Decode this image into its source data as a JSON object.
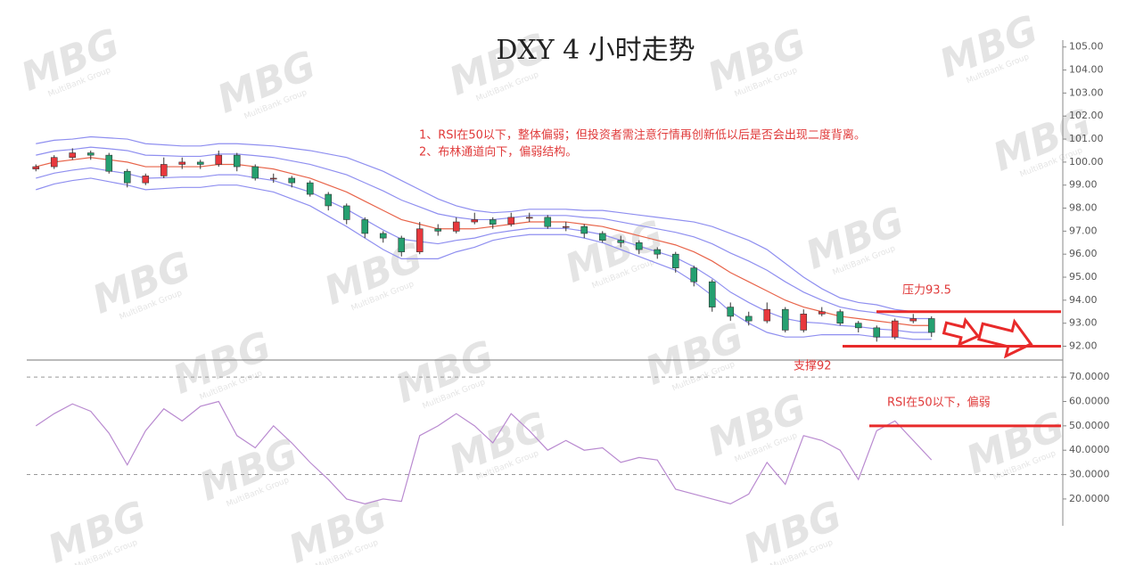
{
  "chart_data": [
    {
      "type": "candlestick",
      "title": "DXY 4 小时走势",
      "annotations": [
        "1、RSI在50以下，整体偏弱；但投资者需注意行情再创新低以后是否会出现二度背离。",
        "2、布林通道向下，偏弱结构。"
      ],
      "watermark": {
        "text": "MBG",
        "subtext": "MultiBank Group"
      },
      "up_color": "#e8383d",
      "down_color": "#25a070",
      "open": [
        99.7,
        99.8,
        100.2,
        100.4,
        100.3,
        99.6,
        99.1,
        99.4,
        99.9,
        100.0,
        99.9,
        100.3,
        99.8,
        99.3,
        99.3,
        99.1,
        98.6,
        98.1,
        97.5,
        96.9,
        96.7,
        96.1,
        97.1,
        97.0,
        97.4,
        97.5,
        97.3,
        97.6,
        97.6,
        97.2,
        97.2,
        96.9,
        96.6,
        96.5,
        96.2,
        96.0,
        95.4,
        94.8,
        93.7,
        93.3,
        93.1,
        93.6,
        92.7,
        93.4,
        93.5,
        93.0,
        92.8,
        92.4,
        93.1,
        93.2
      ],
      "high": [
        99.9,
        100.3,
        100.6,
        100.5,
        100.4,
        99.7,
        99.5,
        100.2,
        100.2,
        100.1,
        100.5,
        100.4,
        99.9,
        99.5,
        99.4,
        99.2,
        98.7,
        98.2,
        97.6,
        97.0,
        96.8,
        97.4,
        97.3,
        97.6,
        97.8,
        97.6,
        97.8,
        97.8,
        97.7,
        97.4,
        97.3,
        97.0,
        96.8,
        96.6,
        96.3,
        96.1,
        95.5,
        94.9,
        93.9,
        93.5,
        93.9,
        93.7,
        93.6,
        93.7,
        93.6,
        93.1,
        92.9,
        93.2,
        93.4,
        93.3
      ],
      "low": [
        99.6,
        99.7,
        100.1,
        100.1,
        99.5,
        98.9,
        99.0,
        99.3,
        99.7,
        99.7,
        99.8,
        99.6,
        99.2,
        99.1,
        98.9,
        98.5,
        97.9,
        97.3,
        96.7,
        96.5,
        95.9,
        96.0,
        96.8,
        96.9,
        97.3,
        97.1,
        97.2,
        97.4,
        97.1,
        97.0,
        96.7,
        96.5,
        96.3,
        96.0,
        95.8,
        95.2,
        94.6,
        93.5,
        93.1,
        92.9,
        93.0,
        92.6,
        92.6,
        93.3,
        92.9,
        92.6,
        92.2,
        92.3,
        93.0,
        92.4
      ],
      "close": [
        99.8,
        100.2,
        100.4,
        100.3,
        99.6,
        99.1,
        99.4,
        99.9,
        100.0,
        99.9,
        100.3,
        99.8,
        99.3,
        99.3,
        99.1,
        98.6,
        98.1,
        97.5,
        96.9,
        96.7,
        96.1,
        97.1,
        97.0,
        97.4,
        97.5,
        97.3,
        97.6,
        97.6,
        97.2,
        97.2,
        96.9,
        96.6,
        96.5,
        96.2,
        96.0,
        95.4,
        94.8,
        93.7,
        93.3,
        93.1,
        93.6,
        92.7,
        93.4,
        93.5,
        93.0,
        92.8,
        92.4,
        93.1,
        93.2,
        92.6
      ],
      "bands": [
        {
          "color": "#8f8ff0",
          "values": [
            100.8,
            100.95,
            101.0,
            101.1,
            101.05,
            101.0,
            100.8,
            100.75,
            100.7,
            100.7,
            100.8,
            100.8,
            100.75,
            100.7,
            100.6,
            100.5,
            100.35,
            100.2,
            99.9,
            99.6,
            99.2,
            98.8,
            98.4,
            98.1,
            97.9,
            97.8,
            97.85,
            97.95,
            97.95,
            97.95,
            97.9,
            97.9,
            97.8,
            97.7,
            97.6,
            97.5,
            97.4,
            97.2,
            96.9,
            96.6,
            96.2,
            95.6,
            95.0,
            94.5,
            94.1,
            93.9,
            93.8,
            93.6,
            93.5,
            93.5
          ]
        },
        {
          "color": "#8f8ff0",
          "values": [
            100.3,
            100.48,
            100.55,
            100.65,
            100.58,
            100.5,
            100.3,
            100.28,
            100.25,
            100.25,
            100.35,
            100.35,
            100.28,
            100.2,
            100.05,
            99.9,
            99.68,
            99.45,
            99.1,
            98.75,
            98.35,
            98.05,
            97.75,
            97.6,
            97.5,
            97.5,
            97.58,
            97.68,
            97.68,
            97.68,
            97.6,
            97.55,
            97.4,
            97.25,
            97.1,
            96.95,
            96.75,
            96.45,
            96.05,
            95.7,
            95.3,
            94.8,
            94.35,
            94.0,
            93.7,
            93.55,
            93.45,
            93.3,
            93.2,
            93.2
          ]
        },
        {
          "color": "#e8644a",
          "values": [
            99.8,
            100.0,
            100.1,
            100.2,
            100.1,
            100.0,
            99.8,
            99.8,
            99.8,
            99.8,
            99.9,
            99.9,
            99.8,
            99.7,
            99.5,
            99.3,
            99.0,
            98.7,
            98.3,
            97.9,
            97.5,
            97.3,
            97.1,
            97.1,
            97.1,
            97.2,
            97.3,
            97.4,
            97.4,
            97.4,
            97.3,
            97.2,
            97.0,
            96.8,
            96.6,
            96.4,
            96.1,
            95.7,
            95.2,
            94.8,
            94.4,
            94.0,
            93.7,
            93.5,
            93.3,
            93.2,
            93.1,
            93.0,
            92.9,
            92.9
          ]
        },
        {
          "color": "#8f8ff0",
          "values": [
            99.3,
            99.52,
            99.65,
            99.75,
            99.62,
            99.5,
            99.3,
            99.32,
            99.35,
            99.35,
            99.45,
            99.45,
            99.32,
            99.2,
            98.95,
            98.7,
            98.32,
            97.95,
            97.5,
            97.05,
            96.65,
            96.55,
            96.45,
            96.6,
            96.7,
            96.9,
            97.02,
            97.12,
            97.12,
            97.12,
            97.0,
            96.85,
            96.6,
            96.35,
            96.1,
            95.85,
            95.45,
            94.95,
            94.35,
            93.9,
            93.5,
            93.2,
            93.05,
            93.0,
            92.9,
            92.85,
            92.75,
            92.7,
            92.6,
            92.6
          ]
        },
        {
          "color": "#8f8ff0",
          "values": [
            98.8,
            99.05,
            99.2,
            99.3,
            99.15,
            99.0,
            98.8,
            98.85,
            98.9,
            98.9,
            99.0,
            99.0,
            98.85,
            98.7,
            98.4,
            98.1,
            97.65,
            97.2,
            96.7,
            96.2,
            95.8,
            95.8,
            95.8,
            96.1,
            96.3,
            96.6,
            96.75,
            96.85,
            96.85,
            96.85,
            96.7,
            96.5,
            96.2,
            95.9,
            95.6,
            95.3,
            94.8,
            94.2,
            93.5,
            93.0,
            92.6,
            92.4,
            92.4,
            92.5,
            92.5,
            92.5,
            92.4,
            92.4,
            92.3,
            92.3
          ]
        }
      ],
      "levels": [
        {
          "value": 93.5,
          "label": "压力93.5"
        },
        {
          "value": 92,
          "label": "支撑92"
        }
      ],
      "ylim": [
        91.4,
        105.3
      ],
      "yticks": [
        {
          "value": 92,
          "label": "92.00"
        },
        {
          "value": 93,
          "label": "93.00"
        },
        {
          "value": 94,
          "label": "94.00"
        },
        {
          "value": 95,
          "label": "95.00"
        },
        {
          "value": 96,
          "label": "96.00"
        },
        {
          "value": 97,
          "label": "97.00"
        },
        {
          "value": 98,
          "label": "98.00"
        },
        {
          "value": 99,
          "label": "99.00"
        },
        {
          "value": 100,
          "label": "100.00"
        },
        {
          "value": 101,
          "label": "101.00"
        },
        {
          "value": 102,
          "label": "102.00"
        },
        {
          "value": 103,
          "label": "103.00"
        },
        {
          "value": 104,
          "label": "104.00"
        },
        {
          "value": 105,
          "label": "105.00"
        }
      ]
    },
    {
      "type": "line",
      "color": "#b98ad0",
      "values": [
        50,
        55,
        59,
        56,
        47,
        34,
        48,
        57,
        52,
        58,
        60,
        46,
        41,
        50,
        43,
        35,
        28,
        20,
        18,
        20,
        19,
        46,
        50,
        55,
        50,
        43,
        55,
        48,
        40,
        44,
        40,
        41,
        35,
        37,
        36,
        24,
        22,
        20,
        18,
        22,
        35,
        26,
        46,
        44,
        40,
        28,
        48,
        52,
        44,
        36
      ],
      "reference_lines": [
        70,
        30
      ],
      "levels": [
        {
          "value": 50,
          "label": "RSI在50以下，偏弱"
        }
      ],
      "ylim": [
        9,
        77
      ],
      "yticks": [
        {
          "value": 20,
          "label": "20.0000"
        },
        {
          "value": 30,
          "label": "30.0000"
        },
        {
          "value": 40,
          "label": "40.0000"
        },
        {
          "value": 50,
          "label": "50.0000"
        },
        {
          "value": 60,
          "label": "60.0000"
        },
        {
          "value": 70,
          "label": "70.0000"
        }
      ]
    }
  ]
}
